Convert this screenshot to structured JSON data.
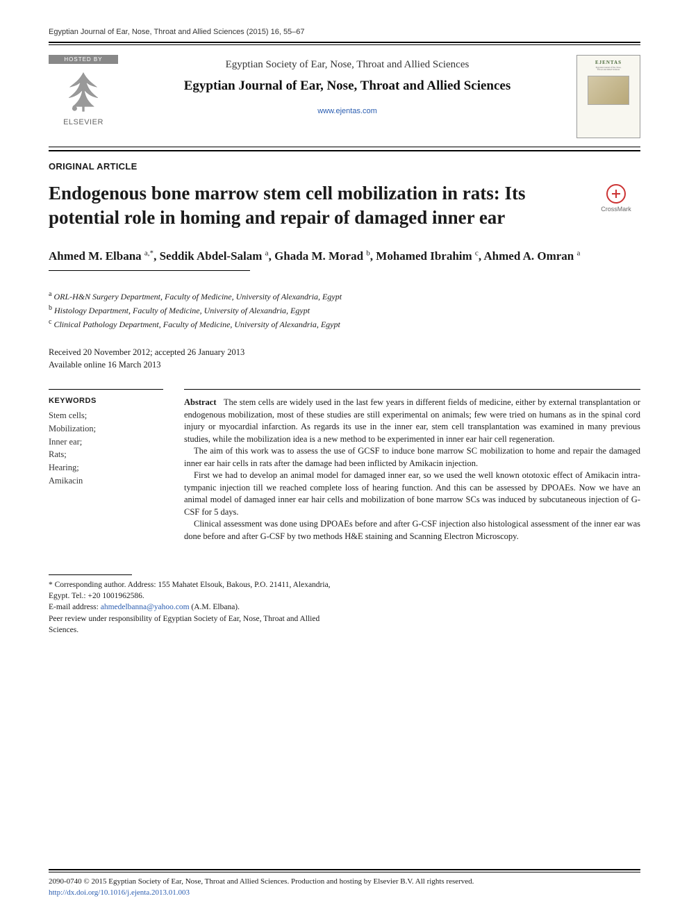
{
  "running_head": "Egyptian Journal of Ear, Nose, Throat and Allied Sciences (2015) 16, 55–67",
  "masthead": {
    "hosted_by": "HOSTED BY",
    "publisher": "ELSEVIER",
    "society": "Egyptian Society of Ear, Nose, Throat and Allied Sciences",
    "journal": "Egyptian Journal of Ear, Nose, Throat and Allied Sciences",
    "url": "www.ejentas.com",
    "cover_title": "EJENTAS"
  },
  "article_type": "ORIGINAL ARTICLE",
  "title": "Endogenous bone marrow stem cell mobilization in rats: Its potential role in homing and repair of damaged inner ear",
  "crossmark_label": "CrossMark",
  "authors_html": "Ahmed M. Elbana <sup>a,*</sup>, Seddik Abdel-Salam <sup>a</sup>, Ghada M. Morad <sup>b</sup>, Mohamed Ibrahim <sup>c</sup>, Ahmed A. Omran <sup>a</sup>",
  "affiliations": {
    "a": "ORL-H&N Surgery Department, Faculty of Medicine, University of Alexandria, Egypt",
    "b": "Histology Department, Faculty of Medicine, University of Alexandria, Egypt",
    "c": "Clinical Pathology Department, Faculty of Medicine, University of Alexandria, Egypt"
  },
  "dates": {
    "received_accepted": "Received 20 November 2012; accepted 26 January 2013",
    "online": "Available online 16 March 2013"
  },
  "keywords_head": "KEYWORDS",
  "keywords": [
    "Stem cells;",
    "Mobilization;",
    "Inner ear;",
    "Rats;",
    "Hearing;",
    "Amikacin"
  ],
  "abstract_label": "Abstract",
  "abstract_paras": [
    "The stem cells are widely used in the last few years in different fields of medicine, either by external transplantation or endogenous mobilization, most of these studies are still experimental on animals; few were tried on humans as in the spinal cord injury or myocardial infarction. As regards its use in the inner ear, stem cell transplantation was examined in many previous studies, while the mobilization idea is a new method to be experimented in inner ear hair cell regeneration.",
    "The aim of this work was to assess the use of GCSF to induce bone marrow SC mobilization to home and repair the damaged inner ear hair cells in rats after the damage had been inflicted by Amikacin injection.",
    "First we had to develop an animal model for damaged inner ear, so we used the well known ototoxic effect of Amikacin intra-tympanic injection till we reached complete loss of hearing function. And this can be assessed by DPOAEs. Now we have an animal model of damaged inner ear hair cells and mobilization of bone marrow SCs was induced by subcutaneous injection of G-CSF for 5 days.",
    "Clinical assessment was done using DPOAEs before and after G-CSF injection also histological assessment of the inner ear was done before and after G-CSF by two methods H&E staining and Scanning Electron Microscopy."
  ],
  "footnotes": {
    "corresponding": "* Corresponding author. Address: 155 Mahatet Elsouk, Bakous, P.O. 21411, Alexandria, Egypt. Tel.: +20 1001962586.",
    "email_label": "E-mail address: ",
    "email": "ahmedelbanna@yahoo.com",
    "email_tail": " (A.M. Elbana).",
    "peer": "Peer review under responsibility of Egyptian Society of Ear, Nose, Throat and Allied Sciences."
  },
  "bottom": {
    "copyright": "2090-0740 © 2015 Egyptian Society of Ear, Nose, Throat and Allied Sciences. Production and hosting by Elsevier B.V. All rights reserved.",
    "doi": "http://dx.doi.org/10.1016/j.ejenta.2013.01.003"
  },
  "colors": {
    "link": "#2a5db0",
    "text": "#1a1a1a",
    "crossmark_red": "#c33",
    "hostedby_bg": "#888888"
  }
}
